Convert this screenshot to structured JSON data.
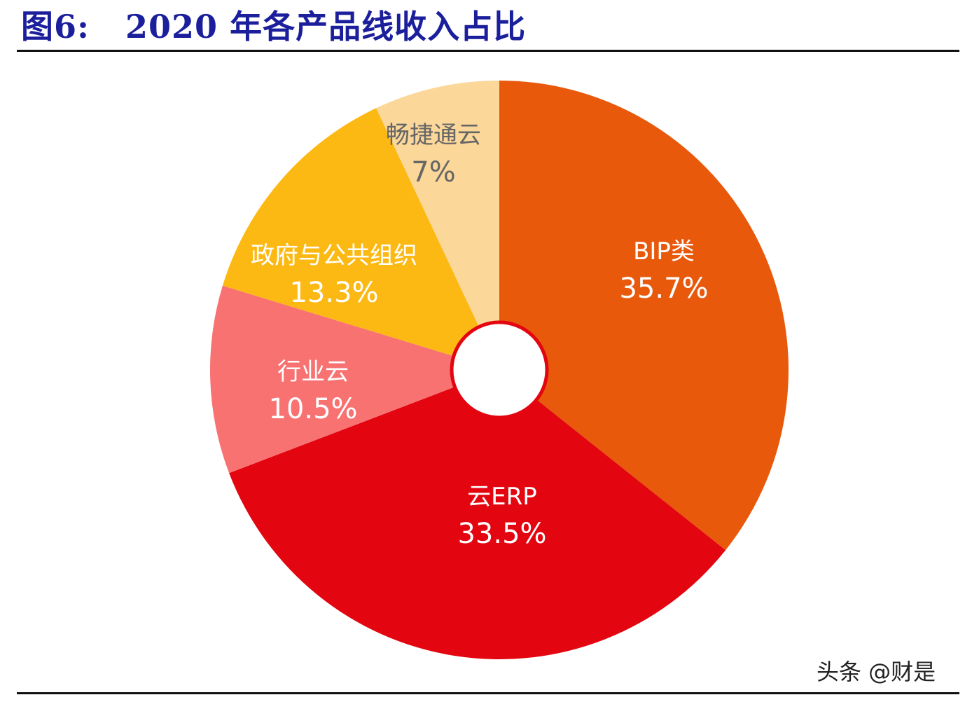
{
  "chart_data": {
    "type": "pie",
    "title": "图6:   2020 年各产品线收入占比",
    "categories": [
      "BIP类",
      "云ERP",
      "行业云",
      "政府与公共组织",
      "畅捷通云"
    ],
    "values": [
      35.7,
      33.5,
      10.5,
      13.3,
      7
    ],
    "labels": [
      "35.7%",
      "33.5%",
      "10.5%",
      "13.3%",
      "7%"
    ],
    "colors": [
      "#E8590C",
      "#E3050F",
      "#F87272",
      "#FDB913",
      "#FBD79A"
    ],
    "label_colors": [
      "#ffffff",
      "#ffffff",
      "#ffffff",
      "#ffffff",
      "#666666"
    ],
    "start": "12 o'clock, clockwise",
    "hole_color": "#E3050F"
  },
  "watermark": "头条 @财是"
}
